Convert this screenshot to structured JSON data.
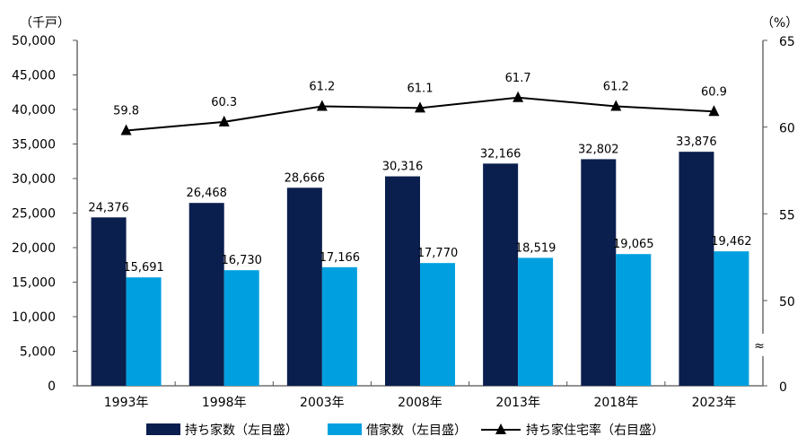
{
  "chart_data": {
    "type": "bar",
    "categories": [
      "1993年",
      "1998年",
      "2003年",
      "2008年",
      "2013年",
      "2018年",
      "2023年"
    ],
    "left_axis": {
      "unit_label": "（千戸）",
      "ylim": [
        0,
        50000
      ],
      "ticks": [
        0,
        5000,
        10000,
        15000,
        20000,
        25000,
        30000,
        35000,
        40000,
        45000,
        50000
      ]
    },
    "right_axis": {
      "unit_label": "（%）",
      "ticks": [
        0,
        50,
        55,
        60,
        65
      ],
      "axis_break": "≈",
      "break_symbol": "≈",
      "visible_range": [
        50,
        65
      ]
    },
    "series": [
      {
        "name": "持ち家数（左目盛）",
        "type": "bar",
        "axis": "left",
        "color": "#0b1f4e",
        "values": [
          24376,
          26468,
          28666,
          30316,
          32166,
          32802,
          33876
        ]
      },
      {
        "name": "借家数（左目盛）",
        "type": "bar",
        "axis": "left",
        "color": "#00a0e0",
        "values": [
          15691,
          16730,
          17166,
          17770,
          18519,
          19065,
          19462
        ]
      },
      {
        "name": "持ち家住宅率（右目盛）",
        "type": "line",
        "axis": "right",
        "marker": "triangle",
        "color": "#000000",
        "values": [
          59.8,
          60.3,
          61.2,
          61.1,
          61.7,
          61.2,
          60.9
        ]
      }
    ],
    "legend_placement": "bottom",
    "grid": false
  }
}
